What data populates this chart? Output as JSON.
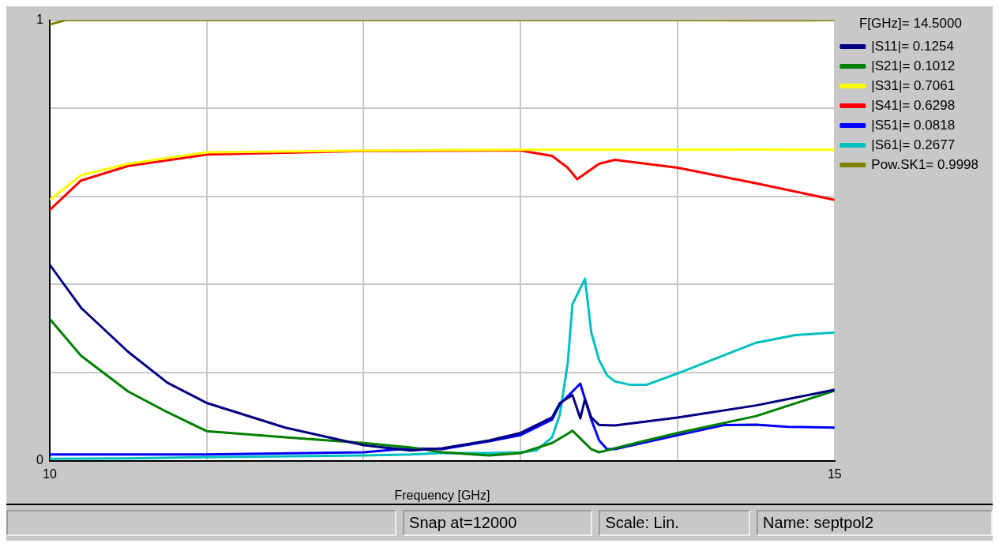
{
  "chart_data": {
    "type": "line",
    "xlabel": "Frequency [GHz]",
    "legend_title": "F[GHz]= 14.5000",
    "legend": "right",
    "grid": true,
    "marker": "none",
    "line_style": "solid",
    "xlim": [
      10,
      15
    ],
    "xticks": [
      10,
      {
        "value": 11,
        "label": null
      },
      {
        "value": 12,
        "label": null
      },
      {
        "value": 13,
        "label": null
      },
      {
        "value": 14,
        "label": null
      },
      15
    ],
    "ylim": [
      0,
      1
    ],
    "yticks": [
      0,
      {
        "value": 0.2,
        "label": null
      },
      {
        "value": 0.4,
        "label": null
      },
      {
        "value": 0.6,
        "label": null
      },
      {
        "value": 0.8,
        "label": null
      },
      1
    ],
    "annotations": [
      "Snap at=12000",
      "Scale: Lin.",
      "Name: septpol2"
    ],
    "series": [
      {
        "name": "|S11|= 0.1254",
        "color": "#000080",
        "x": [
          10,
          10.2,
          10.5,
          10.75,
          11,
          11.5,
          12,
          12.3,
          12.5,
          12.8,
          13,
          13.2,
          13.25,
          13.33,
          13.38,
          13.41,
          13.45,
          13.5,
          13.6,
          14,
          14.5,
          15
        ],
        "values": [
          0.445,
          0.347,
          0.247,
          0.177,
          0.131,
          0.075,
          0.035,
          0.023,
          0.028,
          0.046,
          0.063,
          0.098,
          0.131,
          0.149,
          0.096,
          0.14,
          0.098,
          0.081,
          0.08,
          0.098,
          0.1254,
          0.161
        ]
      },
      {
        "name": "|S21|= 0.1012",
        "color": "#008000",
        "x": [
          10,
          10.2,
          10.5,
          10.75,
          11,
          11.5,
          12,
          12.3,
          12.5,
          12.8,
          13,
          13.2,
          13.3,
          13.33,
          13.45,
          13.5,
          13.6,
          13.8,
          14,
          14.5,
          15
        ],
        "values": [
          0.322,
          0.238,
          0.157,
          0.11,
          0.067,
          0.053,
          0.04,
          0.03,
          0.019,
          0.012,
          0.017,
          0.04,
          0.061,
          0.068,
          0.026,
          0.019,
          0.028,
          0.046,
          0.063,
          0.1012,
          0.159
        ]
      },
      {
        "name": "|S31|= 0.7061",
        "color": "#ffff00",
        "x": [
          10,
          10.2,
          10.5,
          11,
          12,
          13,
          14,
          14.5,
          15
        ],
        "values": [
          0.592,
          0.648,
          0.674,
          0.7,
          0.704,
          0.706,
          0.706,
          0.7061,
          0.706
        ]
      },
      {
        "name": "|S41|= 0.6298",
        "color": "#ff0000",
        "x": [
          10,
          10.2,
          10.5,
          11,
          12,
          12.8,
          13,
          13.2,
          13.3,
          13.36,
          13.5,
          13.6,
          13.8,
          14,
          14.5,
          15
        ],
        "values": [
          0.569,
          0.636,
          0.669,
          0.695,
          0.703,
          0.704,
          0.704,
          0.692,
          0.665,
          0.639,
          0.674,
          0.683,
          0.674,
          0.665,
          0.6298,
          0.592
        ]
      },
      {
        "name": "|S51|= 0.0818",
        "color": "#0000ff",
        "x": [
          10,
          11,
          12,
          12.3,
          12.5,
          12.8,
          13,
          13.2,
          13.25,
          13.38,
          13.45,
          13.5,
          13.55,
          13.6,
          14,
          14.3,
          14.5,
          14.7,
          15
        ],
        "values": [
          0.014,
          0.014,
          0.019,
          0.028,
          0.026,
          0.044,
          0.058,
          0.093,
          0.128,
          0.175,
          0.093,
          0.046,
          0.026,
          0.026,
          0.058,
          0.081,
          0.0818,
          0.077,
          0.075
        ]
      },
      {
        "name": "|S61|= 0.2677",
        "color": "#00c0c0",
        "x": [
          10,
          10.5,
          11,
          12,
          12.3,
          12.5,
          12.8,
          13,
          13.1,
          13.2,
          13.25,
          13.3,
          13.33,
          13.41,
          13.45,
          13.5,
          13.55,
          13.6,
          13.7,
          13.8,
          14,
          14.25,
          14.5,
          14.75,
          15
        ],
        "values": [
          0.004,
          0.005,
          0.008,
          0.012,
          0.014,
          0.017,
          0.017,
          0.019,
          0.023,
          0.053,
          0.105,
          0.221,
          0.355,
          0.413,
          0.291,
          0.228,
          0.194,
          0.18,
          0.172,
          0.172,
          0.198,
          0.233,
          0.2677,
          0.285,
          0.291
        ]
      },
      {
        "name": "Pow.SK1= 0.9998",
        "color": "#808000",
        "x": [
          10,
          10.1,
          11,
          12,
          13,
          14,
          14.5,
          15
        ],
        "values": [
          0.99,
          1,
          1,
          1,
          1,
          1,
          0.9998,
          1
        ]
      }
    ]
  }
}
